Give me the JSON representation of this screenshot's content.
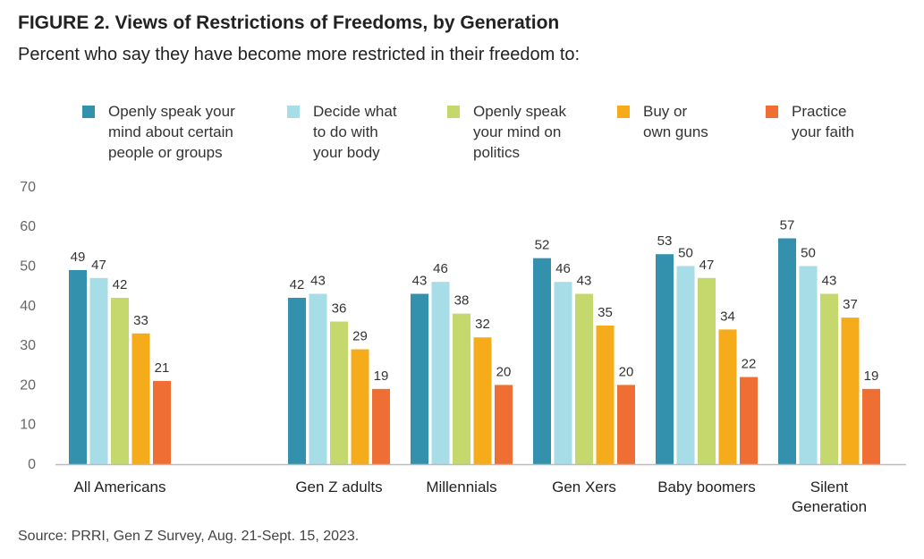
{
  "title": "FIGURE 2. Views of Restrictions of Freedoms, by Generation",
  "subtitle": "Percent who say they have become more restricted in their freedom to:",
  "source": "Source: PRRI, Gen Z Survey, Aug. 21-Sept. 15, 2023.",
  "chart_data": {
    "type": "bar",
    "ylim": [
      0,
      70
    ],
    "yticks": [
      0,
      10,
      20,
      30,
      40,
      50,
      60,
      70
    ],
    "grid": false,
    "legend_position": "top",
    "categories": [
      [
        "All Americans"
      ],
      [
        "Gen Z adults"
      ],
      [
        "Millennials"
      ],
      [
        "Gen Xers"
      ],
      [
        "Baby boomers"
      ],
      [
        "Silent",
        "Generation"
      ]
    ],
    "series": [
      {
        "name": [
          "Openly speak your",
          "mind about certain",
          "people or groups"
        ],
        "color": "#3391ad",
        "values": [
          49,
          42,
          43,
          52,
          53,
          57
        ]
      },
      {
        "name": [
          "Decide what",
          "to do with",
          "your body"
        ],
        "color": "#a6dde6",
        "values": [
          47,
          43,
          46,
          46,
          50,
          50
        ]
      },
      {
        "name": [
          "Openly speak",
          "your mind on",
          "politics"
        ],
        "color": "#c5d86d",
        "values": [
          42,
          36,
          38,
          43,
          47,
          43
        ]
      },
      {
        "name": [
          "Buy or",
          "own guns"
        ],
        "color": "#f6ac1a",
        "values": [
          33,
          29,
          32,
          35,
          34,
          37
        ]
      },
      {
        "name": [
          "Practice",
          "your faith"
        ],
        "color": "#ef6e33",
        "values": [
          21,
          19,
          20,
          20,
          22,
          19
        ]
      }
    ]
  }
}
